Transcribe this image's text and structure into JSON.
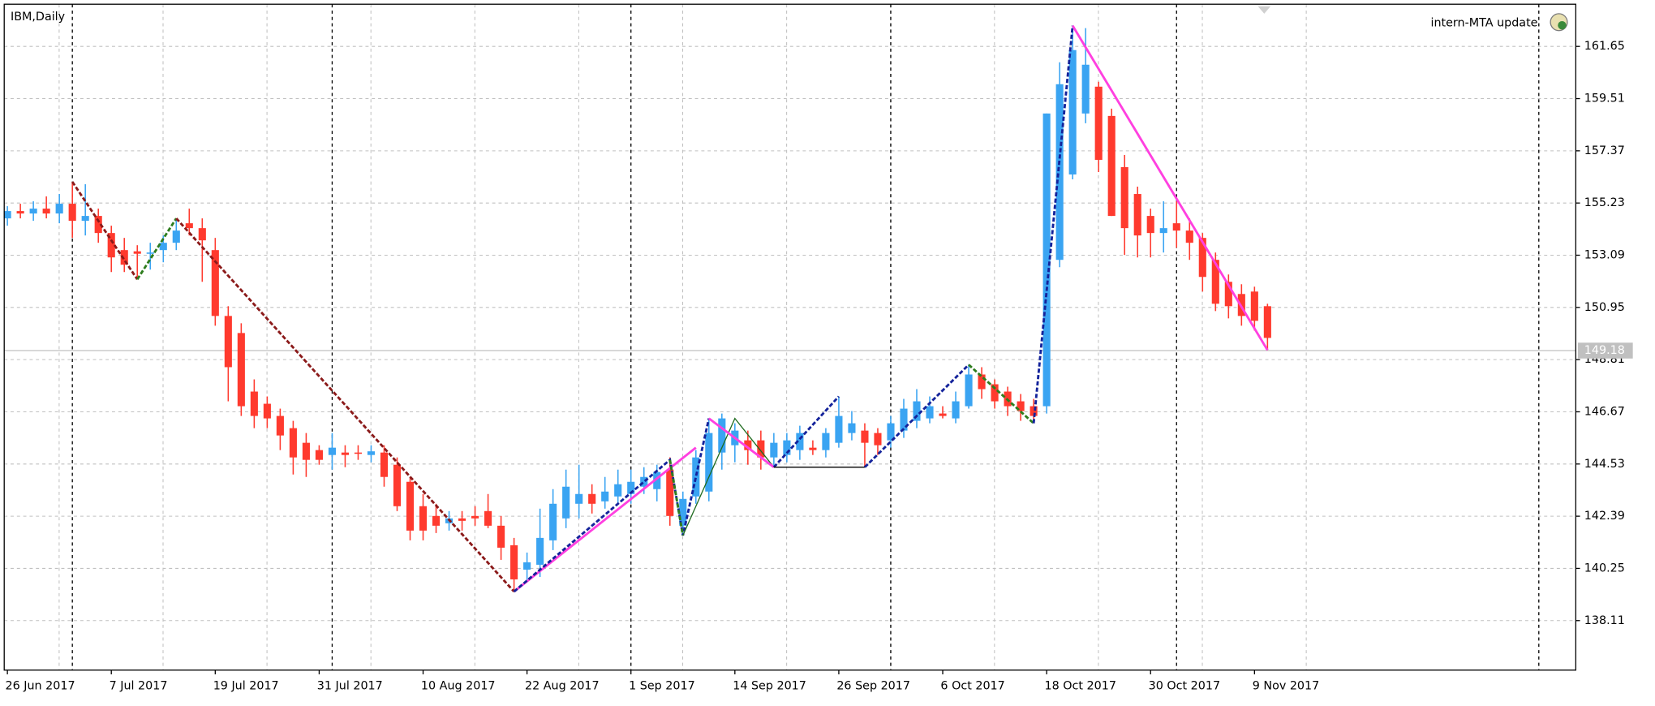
{
  "chart_data": {
    "type": "candlestick",
    "title": "IBM,Daily",
    "annotation": "intern-MTA update",
    "categories": [
      "26 Jun 2017",
      null,
      null,
      null,
      null,
      null,
      null,
      null,
      "7 Jul 2017",
      null,
      null,
      null,
      null,
      null,
      null,
      null,
      "19 Jul 2017",
      null,
      null,
      null,
      null,
      null,
      null,
      null,
      "31 Jul 2017",
      null,
      null,
      null,
      null,
      null,
      null,
      null,
      "10 Aug 2017",
      null,
      null,
      null,
      null,
      null,
      null,
      null,
      "22 Aug 2017",
      null,
      null,
      null,
      null,
      null,
      null,
      null,
      "1 Sep 2017",
      null,
      null,
      null,
      null,
      null,
      null,
      null,
      "14 Sep 2017",
      null,
      null,
      null,
      null,
      null,
      null,
      null,
      "26 Sep 2017",
      null,
      null,
      null,
      null,
      null,
      null,
      null,
      "6 Oct 2017",
      null,
      null,
      null,
      null,
      null,
      null,
      null,
      "18 Oct 2017",
      null,
      null,
      null,
      null,
      null,
      null,
      null,
      "30 Oct 2017",
      null,
      null,
      null,
      null,
      null,
      null,
      null,
      "9 Nov 2017",
      null
    ],
    "open": [
      154.6,
      154.9,
      154.8,
      155.0,
      154.8,
      155.2,
      154.5,
      154.7,
      154.0,
      153.3,
      153.25,
      153.2,
      153.3,
      153.6,
      154.4,
      154.2,
      153.3,
      150.6,
      149.9,
      147.5,
      147.0,
      146.5,
      146.0,
      145.4,
      145.1,
      144.9,
      145.0,
      145.0,
      144.9,
      145.0,
      144.5,
      143.8,
      142.8,
      142.4,
      142.1,
      142.3,
      142.4,
      142.6,
      142.0,
      141.2,
      140.2,
      140.4,
      141.4,
      142.3,
      142.9,
      143.3,
      143.0,
      143.2,
      143.3,
      143.6,
      143.5,
      144.3,
      142.0,
      143.2,
      143.4,
      145.0,
      145.3,
      145.5,
      145.5,
      144.8,
      144.9,
      145.1,
      145.2,
      145.1,
      145.4,
      145.8,
      145.9,
      145.8,
      145.5,
      145.9,
      146.3,
      146.4,
      146.6,
      146.4,
      146.9,
      148.2,
      147.8,
      147.5,
      147.1,
      146.9,
      146.9,
      152.9,
      156.4,
      158.9,
      160.0,
      158.8,
      156.7,
      155.6,
      154.7,
      154.0,
      154.4,
      154.1,
      153.8,
      152.9,
      152.0,
      151.5,
      151.6,
      151.0
    ],
    "high": [
      155.1,
      155.2,
      155.3,
      155.5,
      155.6,
      156.1,
      156.0,
      155.0,
      154.3,
      153.8,
      153.5,
      153.6,
      153.9,
      154.6,
      155.0,
      154.6,
      153.8,
      151.0,
      150.3,
      148.0,
      147.3,
      146.8,
      146.3,
      145.8,
      145.3,
      145.8,
      145.3,
      145.3,
      145.3,
      145.3,
      144.8,
      144.0,
      143.3,
      142.9,
      142.6,
      142.6,
      142.8,
      143.3,
      142.4,
      141.5,
      140.9,
      142.7,
      143.5,
      144.3,
      144.5,
      143.7,
      144.0,
      144.3,
      144.3,
      144.4,
      144.5,
      144.8,
      143.4,
      145.1,
      146.4,
      146.6,
      146.2,
      145.9,
      145.9,
      145.8,
      145.8,
      146.1,
      145.5,
      146.0,
      147.3,
      146.7,
      146.2,
      146.0,
      146.5,
      147.2,
      147.6,
      147.3,
      146.9,
      147.5,
      148.6,
      148.5,
      148.0,
      147.7,
      147.4,
      147.2,
      158.9,
      161.0,
      162.5,
      162.4,
      160.2,
      159.1,
      157.2,
      155.9,
      155.0,
      155.3,
      155.3,
      154.6,
      154.0,
      153.2,
      152.3,
      151.9,
      151.8,
      151.1
    ],
    "low": [
      154.3,
      154.6,
      154.5,
      154.6,
      154.4,
      153.8,
      153.9,
      153.6,
      152.4,
      152.4,
      152.1,
      152.5,
      152.8,
      153.3,
      153.9,
      152.0,
      150.2,
      147.1,
      146.5,
      146.0,
      146.0,
      145.1,
      144.1,
      144.0,
      144.5,
      144.3,
      144.4,
      144.7,
      144.6,
      143.6,
      142.6,
      141.4,
      141.4,
      141.7,
      141.8,
      141.8,
      142.0,
      141.9,
      140.6,
      139.3,
      139.7,
      139.9,
      141.0,
      141.9,
      142.3,
      142.5,
      142.7,
      142.9,
      142.9,
      143.3,
      143.0,
      142.0,
      141.6,
      142.9,
      143.0,
      144.3,
      144.6,
      144.5,
      144.3,
      144.4,
      144.6,
      144.7,
      144.9,
      144.8,
      145.2,
      145.5,
      144.4,
      144.9,
      145.2,
      145.6,
      146.0,
      146.2,
      146.4,
      146.2,
      146.8,
      147.2,
      146.8,
      146.5,
      146.3,
      146.2,
      146.6,
      152.6,
      156.2,
      158.5,
      156.5,
      154.7,
      153.1,
      153.0,
      153.0,
      153.2,
      153.4,
      152.9,
      151.6,
      150.8,
      150.5,
      150.2,
      150.0,
      149.2
    ],
    "close": [
      154.9,
      154.8,
      155.0,
      154.8,
      155.2,
      154.5,
      154.7,
      154.0,
      153.0,
      152.7,
      153.15,
      153.2,
      153.6,
      154.1,
      154.2,
      153.7,
      150.6,
      148.5,
      146.9,
      146.5,
      146.4,
      145.7,
      144.8,
      144.7,
      144.7,
      145.2,
      144.9,
      144.95,
      145.05,
      144.0,
      142.8,
      141.8,
      141.8,
      142.0,
      142.3,
      142.2,
      142.3,
      142.0,
      141.1,
      139.8,
      140.5,
      141.5,
      142.9,
      143.6,
      143.3,
      142.9,
      143.4,
      143.7,
      143.8,
      144.0,
      144.2,
      142.4,
      143.1,
      144.8,
      145.8,
      146.4,
      145.9,
      145.1,
      144.8,
      145.4,
      145.5,
      145.8,
      145.1,
      145.8,
      146.5,
      146.2,
      145.4,
      145.3,
      146.2,
      146.8,
      147.1,
      146.9,
      146.5,
      147.1,
      148.2,
      147.6,
      147.1,
      146.9,
      146.7,
      146.5,
      158.9,
      160.1,
      161.5,
      160.9,
      157.0,
      154.7,
      154.2,
      153.9,
      154.0,
      154.2,
      154.1,
      153.6,
      152.2,
      151.1,
      151.0,
      150.6,
      150.4,
      149.7
    ],
    "up_color": "#3aa4f2",
    "down_color": "#ff3a2e",
    "ylim": [
      136.08,
      163.38
    ],
    "yticks": [
      161.65,
      159.51,
      157.37,
      155.23,
      153.09,
      150.95,
      148.81,
      146.67,
      144.53,
      142.39,
      140.25,
      138.11
    ],
    "grid": true,
    "current_price": 149.18,
    "lines": [
      {
        "color": "#8b1a1a",
        "style": "dashed",
        "x": [
          5,
          10
        ],
        "y": [
          156.1,
          152.1
        ]
      },
      {
        "color": "#2e7d1e",
        "style": "dashed",
        "x": [
          10,
          13
        ],
        "y": [
          152.1,
          154.6
        ]
      },
      {
        "color": "#8b1a1a",
        "style": "dashed",
        "x": [
          13,
          39
        ],
        "y": [
          154.6,
          139.3
        ]
      },
      {
        "color": "#ff40e0",
        "style": "solid",
        "x": [
          39,
          53
        ],
        "y": [
          139.3,
          145.2
        ]
      },
      {
        "color": "#14239b",
        "style": "dashed",
        "x": [
          39,
          51,
          52,
          54
        ],
        "y": [
          139.3,
          144.7,
          141.6,
          146.4
        ]
      },
      {
        "color": "#2e7d1e",
        "style": "dashed",
        "x": [
          51,
          52
        ],
        "y": [
          144.7,
          141.6
        ]
      },
      {
        "color": "#1f6b1f",
        "style": "thin",
        "x": [
          52,
          56,
          59
        ],
        "y": [
          141.6,
          146.4,
          144.4
        ]
      },
      {
        "color": "#ff40e0",
        "style": "solid",
        "x": [
          54,
          59
        ],
        "y": [
          146.4,
          144.4
        ]
      },
      {
        "color": "#14239b",
        "style": "dashed",
        "x": [
          59,
          64
        ],
        "y": [
          144.4,
          147.3
        ]
      },
      {
        "color": "#000000",
        "style": "thin",
        "x": [
          59,
          66
        ],
        "y": [
          144.4,
          144.4
        ]
      },
      {
        "color": "#14239b",
        "style": "dashed",
        "x": [
          66,
          74
        ],
        "y": [
          144.4,
          148.6
        ]
      },
      {
        "color": "#2e7d1e",
        "style": "dashed",
        "x": [
          74,
          79
        ],
        "y": [
          148.6,
          146.2
        ]
      },
      {
        "color": "#14239b",
        "style": "dashed",
        "x": [
          79,
          82
        ],
        "y": [
          146.2,
          162.5
        ]
      },
      {
        "color": "#ff40e0",
        "style": "solid",
        "x": [
          82,
          97
        ],
        "y": [
          162.5,
          149.2
        ]
      }
    ]
  }
}
